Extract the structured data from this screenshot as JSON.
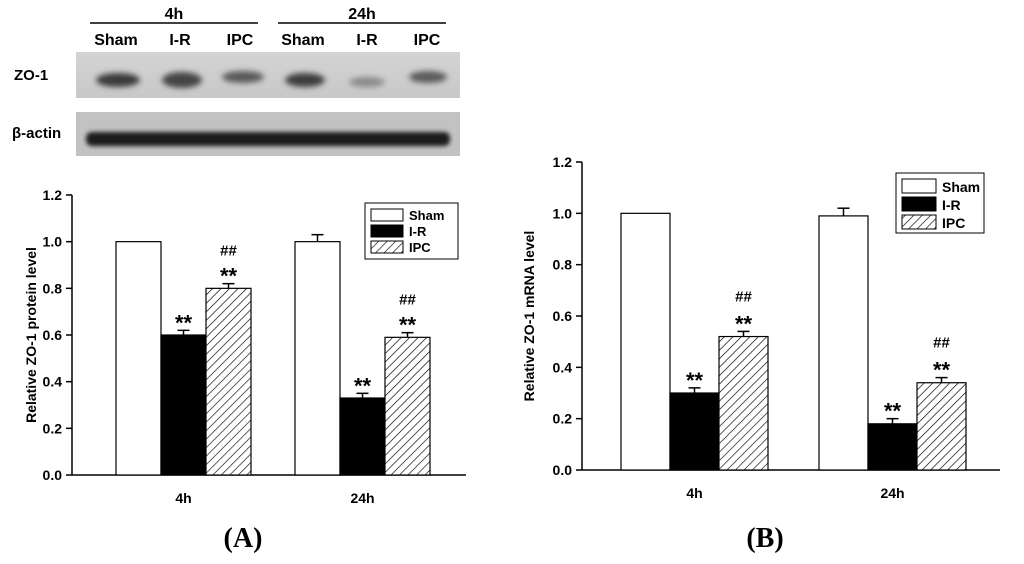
{
  "blot": {
    "group_labels": [
      "4h",
      "24h"
    ],
    "lane_labels": [
      "Sham",
      "I-R",
      "IPC",
      "Sham",
      "I-R",
      "IPC"
    ],
    "row_labels": [
      "ZO-1",
      "β-actin"
    ]
  },
  "panel_labels": {
    "a": {
      "open": "(",
      "letter": "A",
      "close": ")"
    },
    "b": {
      "open": "(",
      "letter": "B",
      "close": ")"
    }
  },
  "chart_data": [
    {
      "type": "bar",
      "panel": "A",
      "title": "",
      "xlabel": "",
      "ylabel": "Relative ZO-1 protein level",
      "categories": [
        "4h",
        "24h"
      ],
      "ylim": [
        0,
        1.2
      ],
      "yticks": [
        "0.0",
        "0.2",
        "0.4",
        "0.6",
        "0.8",
        "1.0",
        "1.2"
      ],
      "series": [
        {
          "name": "Sham",
          "values": [
            1.0,
            1.0
          ],
          "errors": [
            0,
            0.03
          ],
          "annotations": [
            "",
            ""
          ]
        },
        {
          "name": "I-R",
          "values": [
            0.6,
            0.33
          ],
          "errors": [
            0.02,
            0.02
          ],
          "annotations": [
            "**",
            "**"
          ]
        },
        {
          "name": "IPC",
          "values": [
            0.8,
            0.59
          ],
          "errors": [
            0.02,
            0.02
          ],
          "annotations": [
            "##\n**",
            "##\n**"
          ]
        }
      ],
      "legend_position": "top-right"
    },
    {
      "type": "bar",
      "panel": "B",
      "title": "",
      "xlabel": "",
      "ylabel": "Relative ZO-1 mRNA level",
      "categories": [
        "4h",
        "24h"
      ],
      "ylim": [
        0,
        1.2
      ],
      "yticks": [
        "0.0",
        "0.2",
        "0.4",
        "0.6",
        "0.8",
        "1.0",
        "1.2"
      ],
      "series": [
        {
          "name": "Sham",
          "values": [
            1.0,
            0.99
          ],
          "errors": [
            0,
            0.03
          ],
          "annotations": [
            "",
            ""
          ]
        },
        {
          "name": "I-R",
          "values": [
            0.3,
            0.18
          ],
          "errors": [
            0.02,
            0.02
          ],
          "annotations": [
            "**",
            "**"
          ]
        },
        {
          "name": "IPC",
          "values": [
            0.52,
            0.34
          ],
          "errors": [
            0.02,
            0.02
          ],
          "annotations": [
            "##\n**",
            "##\n**"
          ]
        }
      ],
      "legend_position": "top-right"
    }
  ]
}
